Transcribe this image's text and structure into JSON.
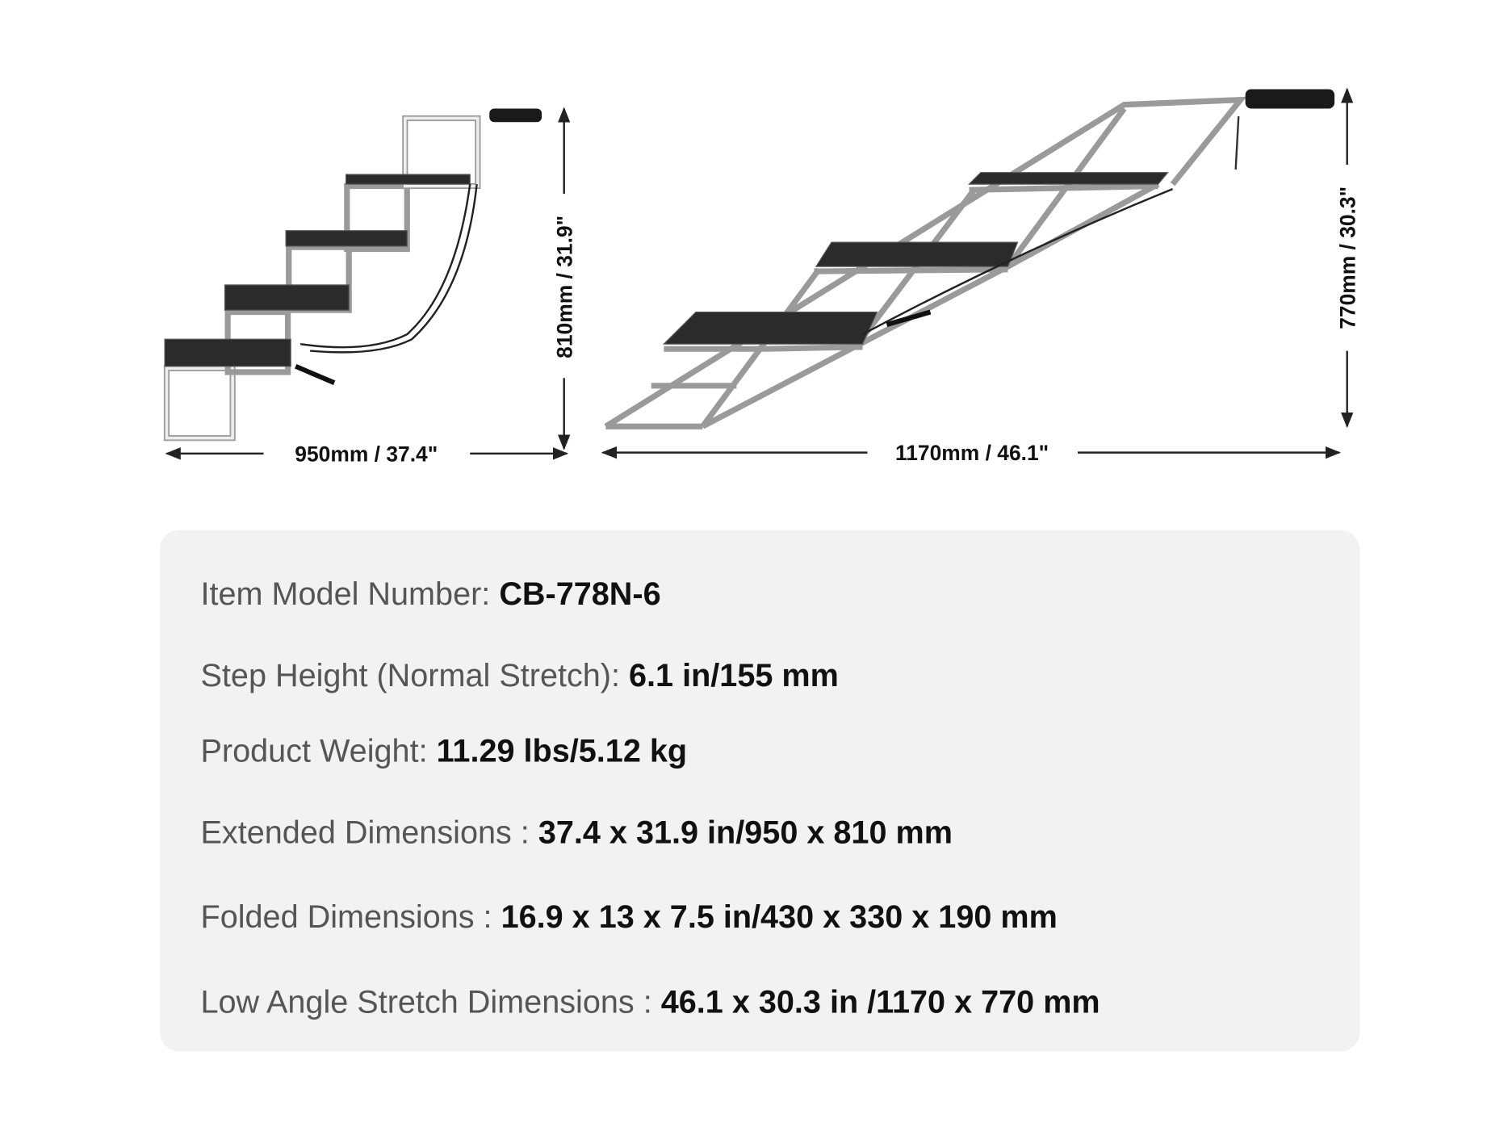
{
  "diagrams": [
    {
      "width_label": "950mm / 37.4\"",
      "height_label": "810mm / 31.9\""
    },
    {
      "width_label": "1170mm / 46.1\"",
      "height_label": "770mm / 30.3\""
    }
  ],
  "specs": [
    {
      "label": "Item Model Number: ",
      "value": "CB-778N-6"
    },
    {
      "label": "Step Height (Normal Stretch): ",
      "value": "6.1 in/155 mm"
    },
    {
      "label": "Product Weight: ",
      "value": "11.29 lbs/5.12 kg"
    },
    {
      "label": "Extended Dimensions : ",
      "value": "37.4 x 31.9 in/950 x 810 mm"
    },
    {
      "label": "Folded Dimensions : ",
      "value": "16.9 x 13 x 7.5 in/430 x 330 x 190 mm"
    },
    {
      "label": "Low Angle Stretch Dimensions : ",
      "value": "46.1 x 30.3 in /1170 x 770 mm"
    }
  ]
}
